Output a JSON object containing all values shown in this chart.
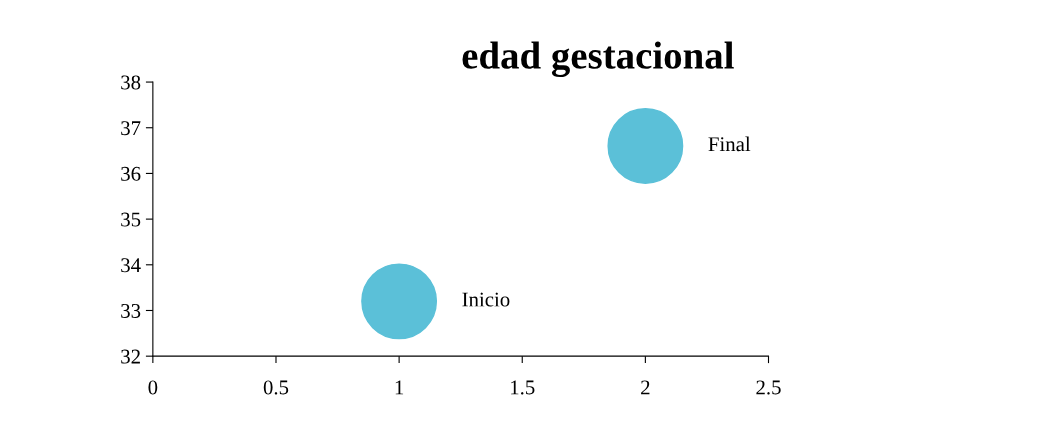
{
  "chart_data": {
    "type": "bubble",
    "title": "edad gestacional",
    "x": [
      1,
      2
    ],
    "series": [
      {
        "color": "#5bc0d8",
        "values": [
          33.2,
          36.6
        ],
        "sizes": [
          1,
          1
        ],
        "value_labels": [
          "Inicio",
          "Final"
        ]
      }
    ],
    "xlim": [
      0,
      2.5
    ],
    "xticks": [
      0,
      0.5,
      1,
      1.5,
      2,
      2.5
    ],
    "ylim": [
      32,
      38
    ],
    "yticks": [
      32,
      33,
      34,
      35,
      36,
      37,
      38
    ],
    "grid": false,
    "legend": false
  }
}
